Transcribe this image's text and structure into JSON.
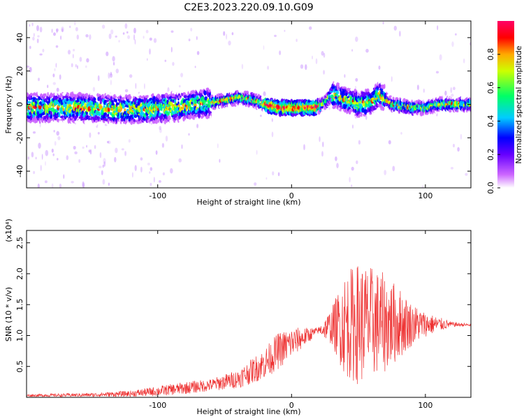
{
  "title": "C2E3.2023.220.09.10.G09",
  "chart_data": [
    {
      "type": "heatmap",
      "xlabel": "Height of straight line (km)",
      "ylabel": "Frequency (Hz)",
      "xlim": [
        -198,
        134
      ],
      "ylim": [
        -50,
        50
      ],
      "xticks": [
        -100,
        0,
        100
      ],
      "yticks": [
        -40,
        -20,
        0,
        20,
        40
      ],
      "colorbar": {
        "label": "Normalized spectral amplitude",
        "range": [
          0,
          1
        ],
        "ticks": [
          0.0,
          0.2,
          0.4,
          0.6,
          0.8
        ],
        "colors": [
          "#ffffff",
          "#cc66ff",
          "#6600ff",
          "#0000ff",
          "#00ccff",
          "#00ff66",
          "#ccff00",
          "#ffaa00",
          "#ff0000",
          "#ff0066"
        ]
      },
      "ridge": {
        "x": [
          -198,
          -160,
          -130,
          -110,
          -90,
          -60,
          -40,
          -30,
          -20,
          -10,
          0,
          10,
          18,
          25,
          30,
          40,
          50,
          60,
          66,
          75,
          90,
          100,
          110,
          120,
          134
        ],
        "y": [
          -2,
          -2,
          -3,
          -3,
          -2,
          1,
          4,
          3,
          0,
          -2,
          -2,
          -2,
          -2,
          1,
          6,
          3,
          0,
          2,
          6,
          0,
          -2,
          -2,
          0,
          0,
          0
        ]
      }
    },
    {
      "type": "line",
      "xlabel": "Height of straight line (km)",
      "ylabel": "SNR (10 * v/v)",
      "yscale_label": "(x10⁴)",
      "xlim": [
        -198,
        134
      ],
      "ylim": [
        0,
        2.7
      ],
      "xticks": [
        -100,
        0,
        100
      ],
      "yticks": [
        0.5,
        1.0,
        1.5,
        2.0,
        2.5
      ],
      "ytick_labels": [
        "0.5",
        "1.0",
        "1.5",
        "2.0",
        "2.5"
      ],
      "series": [
        {
          "color": "#ee3333",
          "envelope_x": [
            -198,
            -150,
            -120,
            -100,
            -80,
            -60,
            -40,
            -30,
            -20,
            -10,
            0,
            10,
            20,
            30,
            40,
            50,
            60,
            70,
            80,
            90,
            100,
            110,
            120,
            134
          ],
          "envelope_mean": [
            0.03,
            0.04,
            0.06,
            0.1,
            0.15,
            0.2,
            0.3,
            0.42,
            0.55,
            0.75,
            0.88,
            0.98,
            1.08,
            1.15,
            1.18,
            1.2,
            1.22,
            1.2,
            1.2,
            1.18,
            1.18,
            1.18,
            1.18,
            1.17
          ],
          "envelope_amp": [
            0.02,
            0.03,
            0.05,
            0.08,
            0.1,
            0.1,
            0.15,
            0.2,
            0.25,
            0.3,
            0.25,
            0.15,
            0.05,
            0.3,
            0.85,
            1.0,
            0.9,
            0.8,
            0.6,
            0.35,
            0.2,
            0.12,
            0.04,
            0.02
          ]
        }
      ]
    }
  ]
}
